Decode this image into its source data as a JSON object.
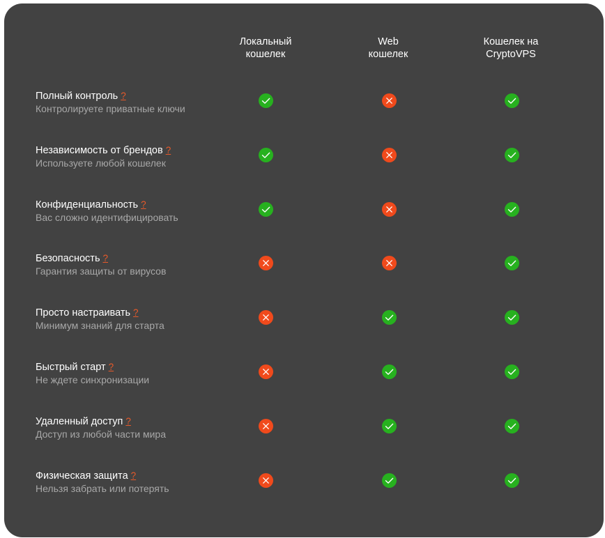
{
  "columns": [
    {
      "label": "Локальный\nкошелек",
      "key": "local"
    },
    {
      "label": "Web\nкошелек",
      "key": "web"
    },
    {
      "label": "Кошелек на\nCryptoVPS",
      "key": "cryptovps"
    }
  ],
  "help_symbol": "?",
  "colors": {
    "background": "#424242",
    "yes": "#27b11f",
    "no": "#f04a1c",
    "help": "#e85a2a"
  },
  "icons": {
    "yes": "check-circle-icon",
    "no": "cross-circle-icon"
  },
  "rows": [
    {
      "title": "Полный контроль",
      "desc": "Контролируете приватные ключи",
      "values": [
        true,
        false,
        true
      ]
    },
    {
      "title": "Независимость от брендов",
      "desc": "Используете любой кошелек",
      "values": [
        true,
        false,
        true
      ]
    },
    {
      "title": "Конфиденциальность",
      "desc": "Вас сложно идентифицировать",
      "values": [
        true,
        false,
        true
      ]
    },
    {
      "title": "Безопасность",
      "desc": "Гарантия защиты от вирусов",
      "values": [
        false,
        false,
        true
      ]
    },
    {
      "title": "Просто настраивать",
      "desc": "Минимум знаний для старта",
      "values": [
        false,
        true,
        true
      ]
    },
    {
      "title": "Быстрый старт",
      "desc": "Не ждете синхронизации",
      "values": [
        false,
        true,
        true
      ]
    },
    {
      "title": "Удаленный доступ",
      "desc": "Доступ из любой части мира",
      "values": [
        false,
        true,
        true
      ]
    },
    {
      "title": "Физическая защита",
      "desc": "Нельзя забрать или потерять",
      "values": [
        false,
        true,
        true
      ]
    }
  ]
}
